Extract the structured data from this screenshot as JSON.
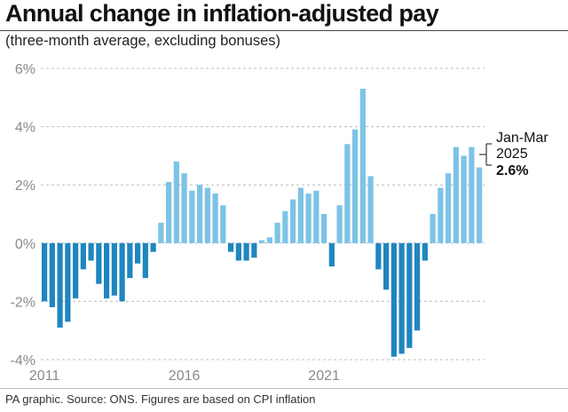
{
  "title": "Annual change in inflation-adjusted pay",
  "subtitle": "(three-month average, excluding bonuses)",
  "source": "PA graphic. Source: ONS. Figures are based on CPI inflation",
  "colors": {
    "positive": "#7cc3e6",
    "negative": "#1f86bf",
    "grid": "#bdbdbd",
    "axis_text": "#8a8a8a"
  },
  "chart_data": {
    "type": "bar",
    "title": "Annual change in inflation-adjusted pay",
    "subtitle": "(three-month average, excluding bonuses)",
    "xlabel": "",
    "ylabel": "",
    "ylim": [
      -4,
      6
    ],
    "yticks": [
      -4,
      -2,
      0,
      2,
      4,
      6
    ],
    "ytick_labels": [
      "-4%",
      "-2%",
      "0%",
      "2%",
      "4%",
      "6%"
    ],
    "xtick_labels": [
      "2011",
      "2016",
      "2021"
    ],
    "xtick_positions": [
      0,
      18,
      36
    ],
    "grid": true,
    "values": [
      -2.0,
      -2.2,
      -2.9,
      -2.7,
      -1.9,
      -0.9,
      -0.6,
      -1.4,
      -1.9,
      -1.8,
      -2.0,
      -1.2,
      -0.7,
      -1.2,
      -0.3,
      0.7,
      2.1,
      2.8,
      2.4,
      1.8,
      2.0,
      1.9,
      1.7,
      1.3,
      -0.3,
      -0.6,
      -0.6,
      -0.5,
      0.1,
      0.2,
      0.7,
      1.1,
      1.5,
      1.9,
      1.7,
      1.8,
      1.0,
      -0.8,
      1.3,
      3.4,
      3.9,
      5.3,
      2.3,
      -0.9,
      -1.6,
      -3.9,
      -3.8,
      -3.6,
      -3.0,
      -0.6,
      1.0,
      1.9,
      2.4,
      3.3,
      3.0,
      3.3,
      2.6
    ],
    "annotation": {
      "label_line1": "Jan-Mar",
      "label_line2": "2025",
      "value": "2.6%"
    }
  }
}
